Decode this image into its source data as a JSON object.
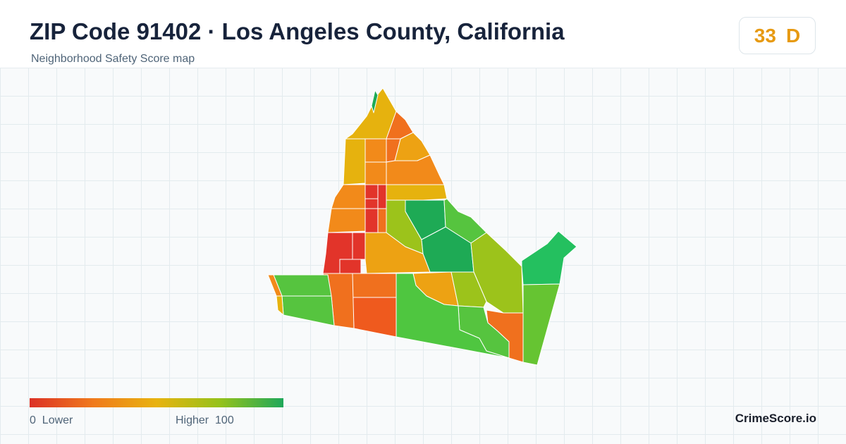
{
  "header": {
    "title": "ZIP Code 91402 · Los Angeles County, California",
    "subtitle": "Neighborhood Safety Score map"
  },
  "score": {
    "value": "33",
    "grade": "D",
    "color": "#e79a12"
  },
  "legend": {
    "min_value": "0",
    "min_label": "Lower",
    "max_label": "Higher",
    "max_value": "100",
    "gradient": [
      "#dc3126",
      "#f07a1c",
      "#e8b30f",
      "#95c21a",
      "#1fa85a"
    ]
  },
  "brand": "CrimeScore.io",
  "map": {
    "score_scale_colors": {
      "low": "#e2342a",
      "low_mid": "#f0701e",
      "mid": "#eda213",
      "mid_high": "#e6b20e",
      "high_mid": "#9cc31b",
      "high": "#56c43f",
      "top": "#1eaa55"
    }
  }
}
